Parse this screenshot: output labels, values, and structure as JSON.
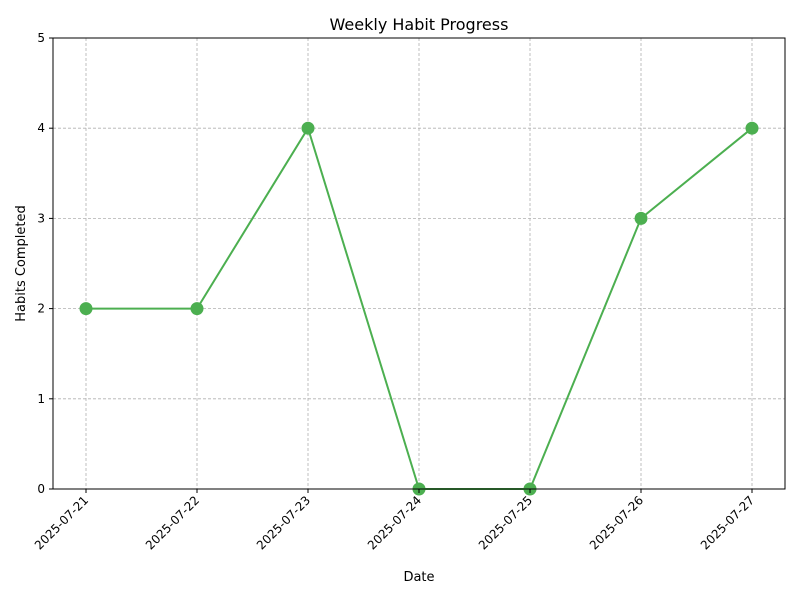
{
  "chart_data": {
    "type": "line",
    "title": "Weekly Habit Progress",
    "xlabel": "Date",
    "ylabel": "Habits Completed",
    "categories": [
      "2025-07-21",
      "2025-07-22",
      "2025-07-23",
      "2025-07-24",
      "2025-07-25",
      "2025-07-26",
      "2025-07-27"
    ],
    "series": [
      {
        "values": [
          2,
          2,
          4,
          0,
          0,
          3,
          4
        ],
        "color": "#4caf50",
        "marker": "circle"
      }
    ],
    "ylim": [
      0,
      5
    ],
    "yticks": [
      "0",
      "1",
      "2",
      "3",
      "4",
      "5"
    ],
    "grid": true,
    "legend": "none"
  }
}
